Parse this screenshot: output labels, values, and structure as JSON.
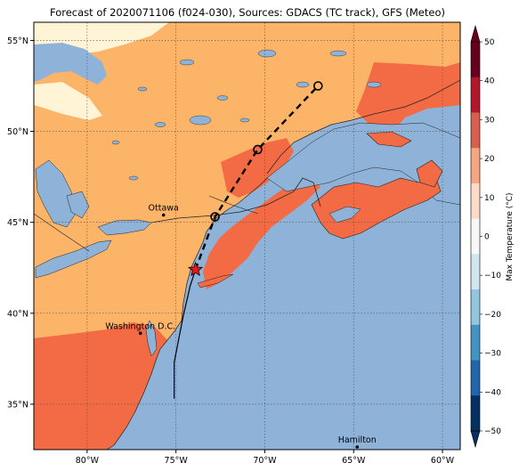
{
  "title": "Forecast of 2020071106 (f024-030), Sources: GDACS (TC track), GFS (Meteo)",
  "map": {
    "lon_range": [
      -83,
      -59
    ],
    "lat_range": [
      32.5,
      56
    ],
    "x_ticks": [
      {
        "lon": -80,
        "label": "80°W"
      },
      {
        "lon": -75,
        "label": "75°W"
      },
      {
        "lon": -70,
        "label": "70°W"
      },
      {
        "lon": -65,
        "label": "65°W"
      },
      {
        "lon": -60,
        "label": "60°W"
      }
    ],
    "y_ticks": [
      {
        "lat": 55,
        "label": "55°N"
      },
      {
        "lat": 50,
        "label": "50°N"
      },
      {
        "lat": 45,
        "label": "45°N"
      },
      {
        "lat": 40,
        "label": "40°N"
      },
      {
        "lat": 35,
        "label": "35°N"
      }
    ],
    "gridlines": true,
    "cities": [
      {
        "name": "Ottawa",
        "lon": -75.7,
        "lat": 45.4
      },
      {
        "name": "Washington D.C.",
        "lon": -77.0,
        "lat": 38.9
      },
      {
        "name": "Hamilton",
        "lon": -64.8,
        "lat": 32.3
      }
    ],
    "track_observed": [
      [
        -75.1,
        35.3
      ],
      [
        -75.1,
        37.3
      ],
      [
        -74.6,
        39.8
      ],
      [
        -74.2,
        41.5
      ],
      [
        -73.9,
        42.4
      ]
    ],
    "track_forecast": [
      [
        -73.9,
        42.4
      ],
      [
        -72.8,
        45.3
      ],
      [
        -70.4,
        49.0
      ],
      [
        -67.0,
        52.5
      ]
    ],
    "current_position": {
      "lon": -73.9,
      "lat": 42.4
    },
    "forecast_points": [
      {
        "lon": -72.8,
        "lat": 45.3
      },
      {
        "lon": -70.4,
        "lat": 49.0
      },
      {
        "lon": -67.0,
        "lat": 52.5
      }
    ]
  },
  "colorbar": {
    "label": "Max Temperature (°C)",
    "ticks": [
      "50",
      "40",
      "30",
      "20",
      "10",
      "0",
      "−10",
      "−20",
      "−30",
      "−40",
      "−50"
    ],
    "colors": [
      "#67001f",
      "#b2182b",
      "#d6604d",
      "#f4a582",
      "#fddbc7",
      "#f7f7f7",
      "#d1e5f0",
      "#92c5de",
      "#4393c3",
      "#2166ac",
      "#053061"
    ]
  },
  "legend_colors": {
    "ocean": "#8eb2d8",
    "temp_10_20": "#fcb469",
    "temp_20_30": "#f26b45",
    "temp_0_10": "#fff4d6",
    "track": "#000000",
    "star": "#e41a1c"
  }
}
